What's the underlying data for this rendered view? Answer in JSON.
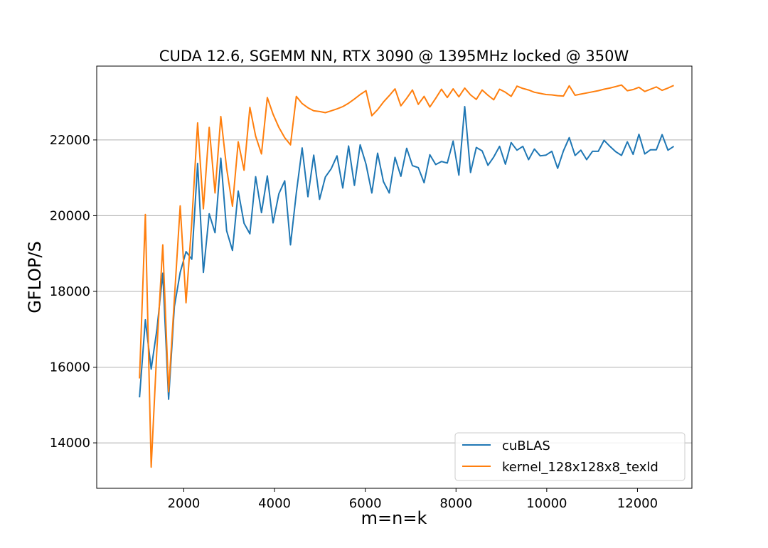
{
  "chart_data": {
    "type": "line",
    "title": "CUDA 12.6, SGEMM NN, RTX 3090 @ 1395MHz locked @ 350W",
    "xlabel": "m=n=k",
    "ylabel": "GFLOP/S",
    "xlim": [
      80,
      13200
    ],
    "ylim": [
      12800,
      23950
    ],
    "xticks": [
      2000,
      4000,
      6000,
      8000,
      10000,
      12000
    ],
    "yticks": [
      14000,
      16000,
      18000,
      20000,
      22000
    ],
    "grid": "horizontal",
    "legend_position": "lower-right",
    "series": [
      {
        "name": "cuBLAS",
        "color": "#1f77b4",
        "x": [
          1024,
          1152,
          1280,
          1408,
          1536,
          1664,
          1792,
          1920,
          2048,
          2176,
          2304,
          2432,
          2560,
          2688,
          2816,
          2944,
          3072,
          3200,
          3328,
          3456,
          3584,
          3712,
          3840,
          3968,
          4096,
          4224,
          4352,
          4480,
          4608,
          4736,
          4864,
          4992,
          5120,
          5248,
          5376,
          5504,
          5632,
          5760,
          5888,
          6016,
          6144,
          6272,
          6400,
          6528,
          6656,
          6784,
          6912,
          7040,
          7168,
          7296,
          7424,
          7552,
          7680,
          7808,
          7936,
          8064,
          8192,
          8320,
          8448,
          8576,
          8704,
          8832,
          8960,
          9088,
          9216,
          9344,
          9472,
          9600,
          9728,
          9856,
          9984,
          10112,
          10240,
          10368,
          10496,
          10624,
          10752,
          10880,
          11008,
          11136,
          11264,
          11392,
          11520,
          11648,
          11776,
          11904,
          12032,
          12160,
          12288,
          12416,
          12544,
          12672,
          12800
        ],
        "y": [
          15200,
          17250,
          15950,
          17000,
          18480,
          15150,
          17600,
          18500,
          19050,
          18850,
          21380,
          18500,
          20050,
          19550,
          21520,
          19600,
          19080,
          20650,
          19800,
          19520,
          21030,
          20080,
          21050,
          19810,
          20580,
          20920,
          19230,
          20600,
          21790,
          20500,
          21600,
          20430,
          21020,
          21240,
          21580,
          20730,
          21840,
          20800,
          21870,
          21360,
          20600,
          21650,
          20900,
          20600,
          21540,
          21040,
          21780,
          21320,
          21270,
          20870,
          21610,
          21350,
          21430,
          21390,
          21970,
          21070,
          22880,
          21140,
          21800,
          21710,
          21330,
          21550,
          21830,
          21360,
          21930,
          21730,
          21830,
          21480,
          21760,
          21580,
          21600,
          21700,
          21250,
          21710,
          22060,
          21590,
          21730,
          21480,
          21700,
          21700,
          21990,
          21830,
          21690,
          21590,
          21950,
          21620,
          22150,
          21630,
          21740,
          21740,
          22140,
          21730,
          21830
        ]
      },
      {
        "name": "kernel_128x128x8_texld",
        "color": "#ff7f0e",
        "x": [
          1024,
          1152,
          1280,
          1408,
          1536,
          1664,
          1792,
          1920,
          2048,
          2176,
          2304,
          2432,
          2560,
          2688,
          2816,
          2944,
          3072,
          3200,
          3328,
          3456,
          3584,
          3712,
          3840,
          3968,
          4096,
          4224,
          4352,
          4480,
          4608,
          4736,
          4864,
          4992,
          5120,
          5248,
          5376,
          5504,
          5632,
          5760,
          5888,
          6016,
          6144,
          6272,
          6400,
          6528,
          6656,
          6784,
          6912,
          7040,
          7168,
          7296,
          7424,
          7552,
          7680,
          7808,
          7936,
          8064,
          8192,
          8320,
          8448,
          8576,
          8704,
          8832,
          8960,
          9088,
          9216,
          9344,
          9472,
          9600,
          9728,
          9856,
          9984,
          10112,
          10240,
          10368,
          10496,
          10624,
          10752,
          10880,
          11008,
          11136,
          11264,
          11392,
          11520,
          11648,
          11776,
          11904,
          12032,
          12160,
          12288,
          12416,
          12544,
          12672,
          12800
        ],
        "y": [
          15700,
          20030,
          13360,
          16500,
          19230,
          15350,
          17800,
          20260,
          17700,
          19830,
          22450,
          20180,
          22330,
          20600,
          22620,
          21250,
          20250,
          21950,
          21200,
          22860,
          22100,
          21630,
          23120,
          22680,
          22330,
          22060,
          21870,
          23150,
          22960,
          22850,
          22770,
          22750,
          22720,
          22770,
          22820,
          22880,
          22970,
          23080,
          23200,
          23300,
          22640,
          22800,
          23000,
          23170,
          23350,
          22900,
          23100,
          23320,
          22940,
          23150,
          22870,
          23100,
          23340,
          23120,
          23350,
          23140,
          23370,
          23190,
          23070,
          23320,
          23180,
          23060,
          23340,
          23260,
          23150,
          23420,
          23360,
          23320,
          23260,
          23230,
          23200,
          23190,
          23170,
          23160,
          23430,
          23180,
          23210,
          23240,
          23270,
          23300,
          23340,
          23370,
          23410,
          23450,
          23300,
          23330,
          23390,
          23280,
          23340,
          23400,
          23310,
          23370,
          23440
        ]
      }
    ]
  }
}
